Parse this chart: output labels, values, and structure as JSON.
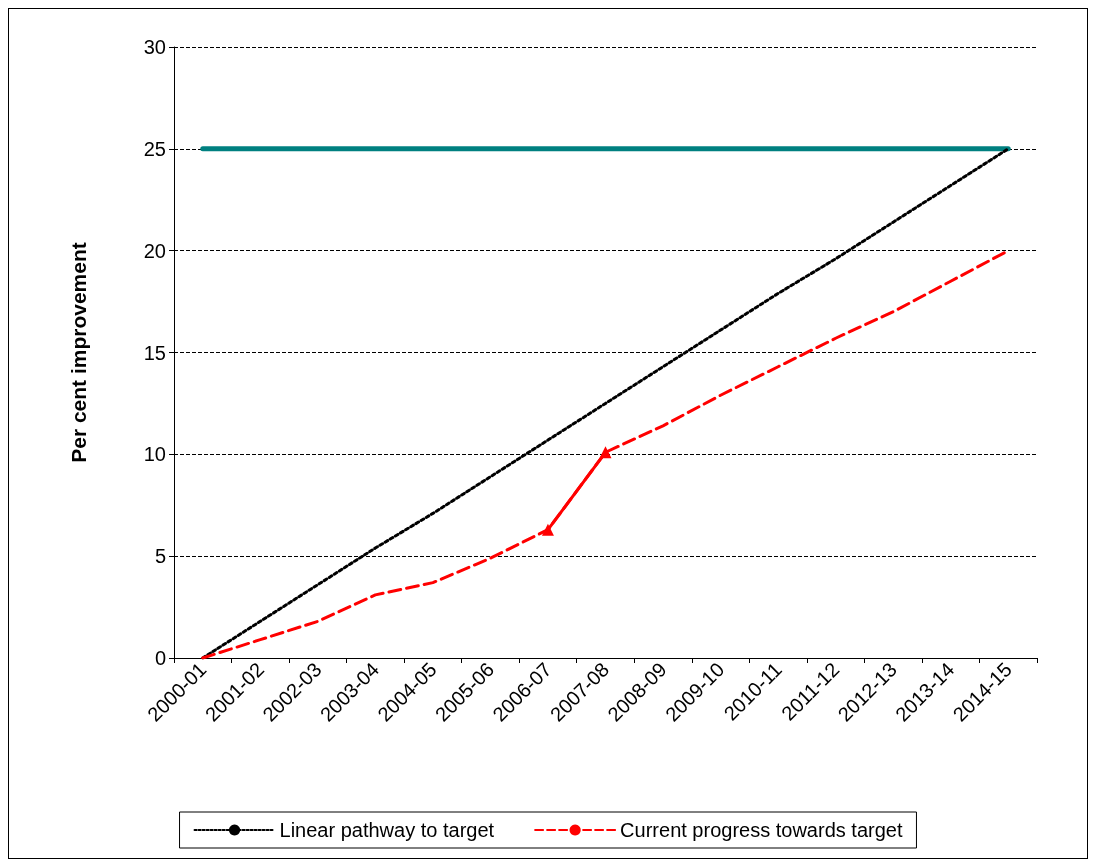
{
  "chart_data": {
    "type": "line",
    "ylabel": "Per cent improvement",
    "categories": [
      "2000-01",
      "2001-02",
      "2002-03",
      "2003-04",
      "2004-05",
      "2005-06",
      "2006-07",
      "2007-08",
      "2008-09",
      "2009-10",
      "2010-11",
      "2011-12",
      "2012-13",
      "2013-14",
      "2014-15"
    ],
    "series": [
      {
        "color": "#008080",
        "line_style": "solid",
        "marker": "none",
        "values": [
          25,
          25,
          25,
          25,
          25,
          25,
          25,
          25,
          25,
          25,
          25,
          25,
          25,
          25,
          25
        ]
      },
      {
        "name": "Linear pathway to target",
        "color": "#000000",
        "line_style": "dotted",
        "marker": "none",
        "values": [
          0,
          1.8,
          3.6,
          5.4,
          7.1,
          8.9,
          10.7,
          12.5,
          14.3,
          16.1,
          17.9,
          19.6,
          21.4,
          23.2,
          25
        ]
      },
      {
        "name": "Current progress towards target",
        "color": "#ff0000",
        "line_style": "dashed",
        "marker": "none",
        "values": [
          0,
          0.9,
          1.8,
          3.1,
          3.7,
          4.9,
          6.3,
          10.1,
          11.4,
          12.9,
          14.3,
          15.7,
          17.0,
          18.5,
          20.0
        ]
      },
      {
        "color": "#ff0000",
        "line_style": "solid",
        "marker": "triangle",
        "values": [
          null,
          null,
          null,
          null,
          null,
          null,
          6.3,
          10.1,
          null,
          null,
          null,
          null,
          null,
          null,
          null
        ]
      }
    ],
    "ylim": [
      0,
      30
    ],
    "yticks": [
      0,
      5,
      10,
      15,
      20,
      25,
      30
    ],
    "grid": "y",
    "legend": "bottom"
  }
}
